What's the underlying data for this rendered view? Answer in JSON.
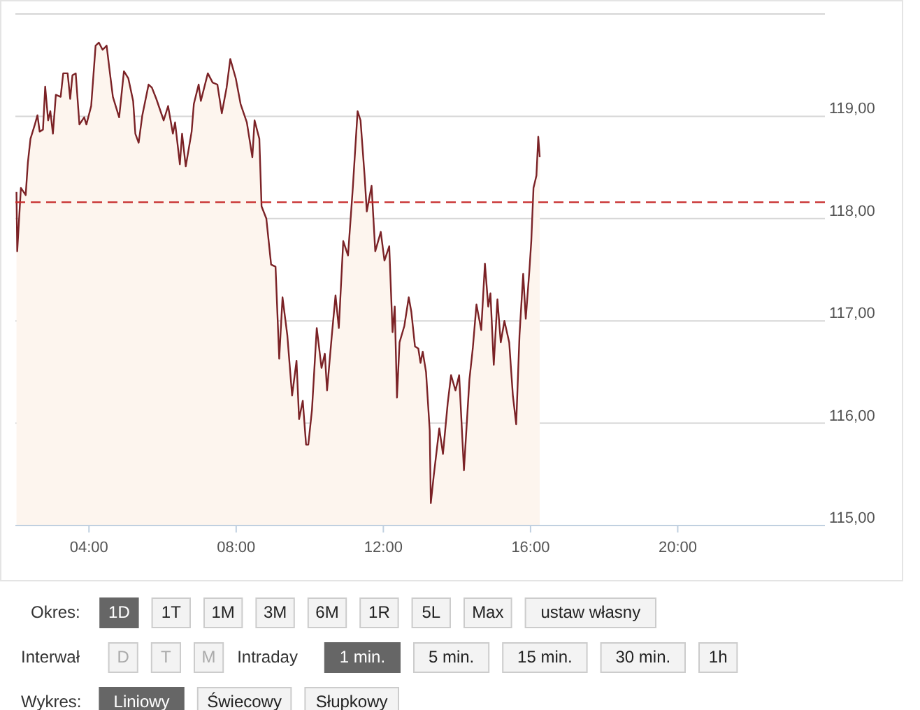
{
  "chart_data": [
    {
      "type": "area",
      "x": [
        2.03,
        2.05,
        2.15,
        2.28,
        2.34,
        2.41,
        2.53,
        2.6,
        2.66,
        2.75,
        2.81,
        2.89,
        2.95,
        3.02,
        3.1,
        3.23,
        3.3,
        3.42,
        3.49,
        3.55,
        3.64,
        3.74,
        3.87,
        3.93,
        4.06,
        4.18,
        4.27,
        4.37,
        4.48,
        4.57,
        4.65,
        4.82,
        4.95,
        5.07,
        5.2,
        5.26,
        5.35,
        5.45,
        5.62,
        5.71,
        5.83,
        6.03,
        6.15,
        6.28,
        6.34,
        6.47,
        6.53,
        6.63,
        6.79,
        6.85,
        6.98,
        7.04,
        7.23,
        7.36,
        7.49,
        7.61,
        7.74,
        7.84,
        7.99,
        8.12,
        8.29,
        8.44,
        8.5,
        8.63,
        8.69,
        8.82,
        8.95,
        9.07,
        9.17,
        9.26,
        9.39,
        9.52,
        9.64,
        9.71,
        9.81,
        9.9,
        9.96,
        10.06,
        10.19,
        10.32,
        10.41,
        10.47,
        10.6,
        10.7,
        10.79,
        10.91,
        11.04,
        11.17,
        11.3,
        11.38,
        11.49,
        11.55,
        11.68,
        11.78,
        11.93,
        12.03,
        12.16,
        12.25,
        12.31,
        12.37,
        12.44,
        12.57,
        12.69,
        12.76,
        12.86,
        12.95,
        13.01,
        13.07,
        13.16,
        13.26,
        13.29,
        13.37,
        13.52,
        13.62,
        13.75,
        13.84,
        13.96,
        14.06,
        14.19,
        14.34,
        14.43,
        14.53,
        14.66,
        14.76,
        14.85,
        14.91,
        15.0,
        15.1,
        15.19,
        15.29,
        15.42,
        15.52,
        15.61,
        15.7,
        15.8,
        15.87,
        15.97,
        16.02,
        16.08,
        16.16,
        16.21,
        16.25
      ],
      "series": [
        {
          "color": "#7b2226",
          "values": [
            118.26,
            117.68,
            118.3,
            118.23,
            118.55,
            118.78,
            118.92,
            119.01,
            118.85,
            118.87,
            119.29,
            118.96,
            119.05,
            118.83,
            119.21,
            119.19,
            119.42,
            119.42,
            119.17,
            119.4,
            119.42,
            118.92,
            118.99,
            118.92,
            119.1,
            119.69,
            119.72,
            119.65,
            119.69,
            119.42,
            119.19,
            118.99,
            119.44,
            119.37,
            119.15,
            118.83,
            118.74,
            119.01,
            119.31,
            119.28,
            119.17,
            118.96,
            119.1,
            118.83,
            118.94,
            118.53,
            118.83,
            118.51,
            118.85,
            119.12,
            119.31,
            119.15,
            119.42,
            119.33,
            119.31,
            119.03,
            119.28,
            119.56,
            119.37,
            119.12,
            118.94,
            118.6,
            118.96,
            118.78,
            118.12,
            118.0,
            117.55,
            117.53,
            116.63,
            117.23,
            116.86,
            116.27,
            116.61,
            116.04,
            116.22,
            115.79,
            115.79,
            116.13,
            116.93,
            116.54,
            116.68,
            116.32,
            116.86,
            117.25,
            116.93,
            117.78,
            117.64,
            118.3,
            119.05,
            118.96,
            118.42,
            118.07,
            118.32,
            117.68,
            117.87,
            117.59,
            117.73,
            116.89,
            117.14,
            116.25,
            116.79,
            116.95,
            117.23,
            117.09,
            116.75,
            116.73,
            116.59,
            116.7,
            116.5,
            115.93,
            115.22,
            115.49,
            115.95,
            115.7,
            116.2,
            116.47,
            116.32,
            116.47,
            115.54,
            116.43,
            116.73,
            117.16,
            116.91,
            117.56,
            117.14,
            117.27,
            116.57,
            117.21,
            116.79,
            117.0,
            116.79,
            116.27,
            115.99,
            116.86,
            117.46,
            117.02,
            117.5,
            117.78,
            118.3,
            118.42,
            118.8,
            118.6
          ]
        }
      ],
      "xlim": [
        2,
        24
      ],
      "xticks": [
        {
          "value": 4,
          "label": "04:00"
        },
        {
          "value": 8,
          "label": "08:00"
        },
        {
          "value": 12,
          "label": "12:00"
        },
        {
          "value": 16,
          "label": "16:00"
        },
        {
          "value": 20,
          "label": "20:00"
        }
      ],
      "ylim": [
        115,
        120
      ],
      "yticks": [
        {
          "value": 115,
          "label": "115,00"
        },
        {
          "value": 116,
          "label": "116,00"
        },
        {
          "value": 117,
          "label": "117,00"
        },
        {
          "value": 118,
          "label": "118,00"
        },
        {
          "value": 119,
          "label": "119,00"
        },
        {
          "value": 120,
          "label": null
        }
      ],
      "grid": "y",
      "ref_lines": [
        {
          "axis": "y",
          "value": 118.16,
          "color": "#c62828",
          "line_style": "dashed"
        }
      ]
    },
    {
      "type": "other",
      "annotations": [
        "Okres:",
        "1D",
        "1T",
        "1M",
        "3M",
        "6M",
        "1R",
        "5L",
        "Max",
        "ustaw własny",
        "Interwał",
        "D",
        "T",
        "M",
        "Intraday",
        "1 min.",
        "5 min.",
        "15 min.",
        "30 min.",
        "1h",
        "Wykres:",
        "Liniowy",
        "Świecowy",
        "Słupkowy"
      ]
    }
  ]
}
